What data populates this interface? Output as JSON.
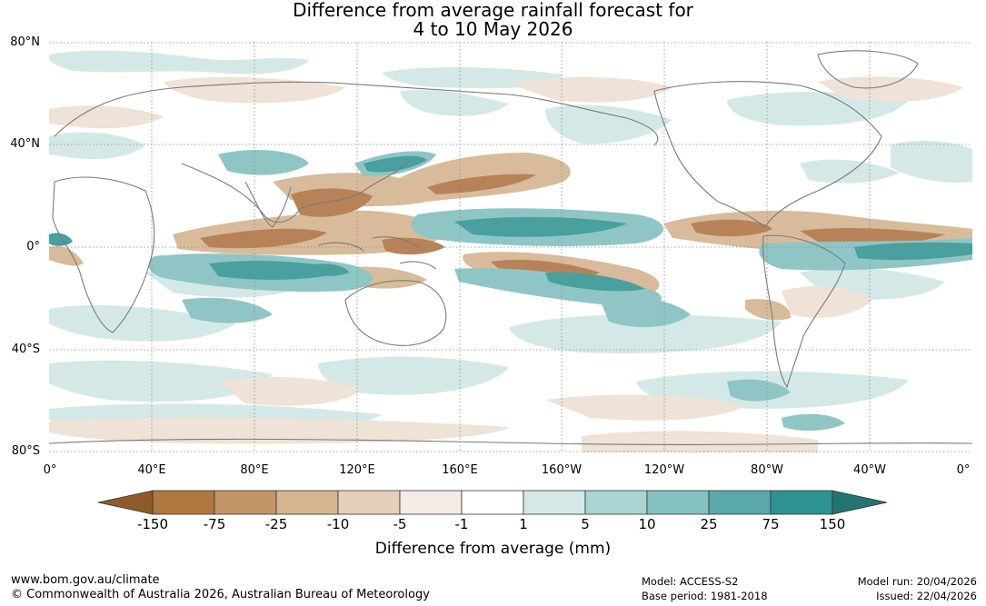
{
  "title": {
    "line1": "Difference from average rainfall forecast for",
    "line2": "4 to 10 May 2026"
  },
  "axes": {
    "lat_labels": [
      "80°N",
      "40°N",
      "0°",
      "40°S",
      "80°S"
    ],
    "lon_labels": [
      "0°",
      "40°E",
      "80°E",
      "120°E",
      "160°E",
      "160°W",
      "120°W",
      "80°W",
      "40°W",
      "0°"
    ]
  },
  "colorbar": {
    "title": "Difference from average (mm)",
    "ticks": [
      "-150",
      "-75",
      "-25",
      "-10",
      "-5",
      "-1",
      "1",
      "5",
      "10",
      "25",
      "75",
      "150"
    ],
    "colors": [
      "#8f5a2b",
      "#b07841",
      "#c49567",
      "#d5b490",
      "#e5d0bc",
      "#f3ebe4",
      "#ffffff",
      "#d4e9e7",
      "#a9d4d2",
      "#84c1c0",
      "#5aa9aa",
      "#2e9292",
      "#227572"
    ]
  },
  "footer": {
    "url": "www.bom.gov.au/climate",
    "copyright": "© Commonwealth of Australia 2026, Australian Bureau of Meteorology",
    "model": "Model: ACCESS-S2",
    "base_period": "Base period: 1981-2018",
    "model_run": "Model run: 20/04/2026",
    "issued": "Issued: 22/04/2026"
  }
}
